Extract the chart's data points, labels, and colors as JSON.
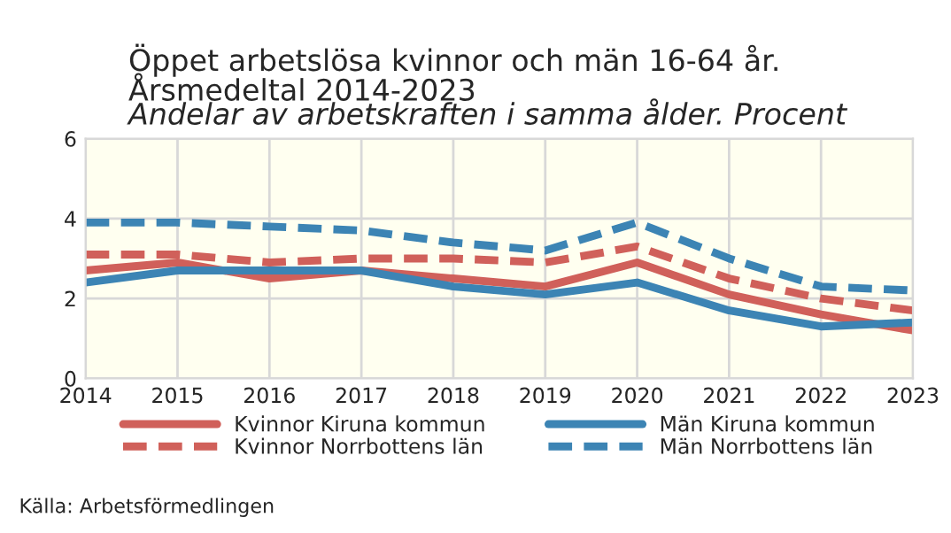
{
  "chart_data": {
    "type": "line",
    "title": "Öppet arbetslösa kvinnor och män 16-64 år.\nÅrsmedeltal 2014-2023",
    "subtitle": "Andelar av arbetskraften i samma ålder. Procent",
    "x": [
      2014,
      2015,
      2016,
      2017,
      2018,
      2019,
      2020,
      2021,
      2022,
      2023
    ],
    "series": [
      {
        "name": "Kvinnor Kiruna kommun",
        "color": "#d0605a",
        "line_style": "solid",
        "values": [
          2.7,
          2.9,
          2.5,
          2.7,
          2.5,
          2.3,
          2.9,
          2.1,
          1.6,
          1.2
        ]
      },
      {
        "name": "Kvinnor Norrbottens län",
        "color": "#d0605a",
        "line_style": "dashed",
        "values": [
          3.1,
          3.1,
          2.9,
          3.0,
          3.0,
          2.9,
          3.3,
          2.5,
          2.0,
          1.7
        ]
      },
      {
        "name": "Män Kiruna kommun",
        "color": "#3c84b4",
        "line_style": "solid",
        "values": [
          2.4,
          2.7,
          2.7,
          2.7,
          2.3,
          2.1,
          2.4,
          1.7,
          1.3,
          1.4
        ]
      },
      {
        "name": "Män Norrbottens län",
        "color": "#3c84b4",
        "line_style": "dashed",
        "values": [
          3.9,
          3.9,
          3.8,
          3.7,
          3.4,
          3.2,
          3.9,
          3.0,
          2.3,
          2.2
        ]
      }
    ],
    "xlim": [
      2014,
      2023
    ],
    "xticks": [
      2014,
      2015,
      2016,
      2017,
      2018,
      2019,
      2020,
      2021,
      2022,
      2023
    ],
    "ylim": [
      0,
      6
    ],
    "yticks": [
      0,
      2,
      4,
      6
    ],
    "grid": true,
    "legend": "bottom",
    "marker": "none",
    "annotations": [
      "Källa: Arbetsförmedlingen"
    ]
  }
}
